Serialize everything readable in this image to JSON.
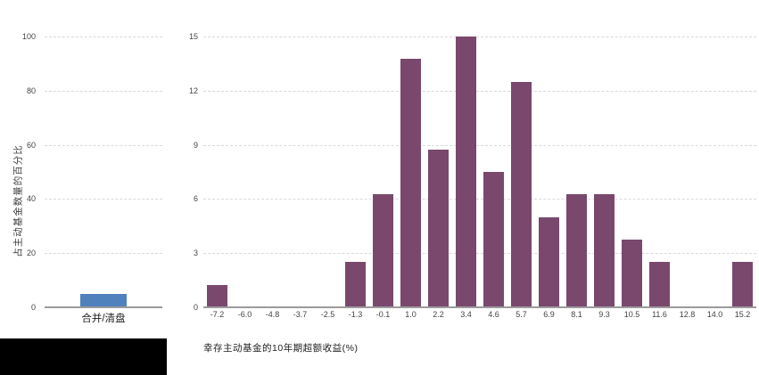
{
  "chart_data": [
    {
      "type": "bar",
      "title": "",
      "categories": [
        "合并/清盘"
      ],
      "values": [
        5
      ],
      "xlabel": "",
      "ylabel": "占主动基金数量的百分比",
      "ylim": [
        0,
        100
      ],
      "yticks": [
        0,
        20,
        40,
        60,
        80,
        100
      ],
      "grid": "horizontal-dashed",
      "legend": "none",
      "bar_color": "#4F81BD",
      "bar_width_pct": 39
    },
    {
      "type": "bar",
      "subtype": "histogram",
      "title": "",
      "categories": [
        "-7.2",
        "-6.0",
        "-4.8",
        "-3.7",
        "-2.5",
        "-1.3",
        "-0.1",
        "1.0",
        "2.2",
        "3.4",
        "4.6",
        "5.7",
        "6.9",
        "8.1",
        "9.3",
        "10.5",
        "11.6",
        "12.8",
        "14.0",
        "15.2"
      ],
      "values": [
        1.25,
        0,
        0,
        0,
        0,
        2.5,
        6.25,
        13.75,
        8.75,
        15,
        7.5,
        12.5,
        5,
        6.25,
        6.25,
        3.75,
        2.5,
        0,
        0,
        2.5
      ],
      "xlabel": "幸存主动基金的10年期超额收益(%)",
      "ylabel": "",
      "ylim": [
        0,
        15
      ],
      "yticks": [
        0,
        3,
        6,
        9,
        12,
        15
      ],
      "grid": "horizontal-dashed",
      "legend": "none",
      "bar_color": "#7A486D",
      "bar_width_pct": 75
    }
  ],
  "redaction": {
    "color": "#000000"
  }
}
